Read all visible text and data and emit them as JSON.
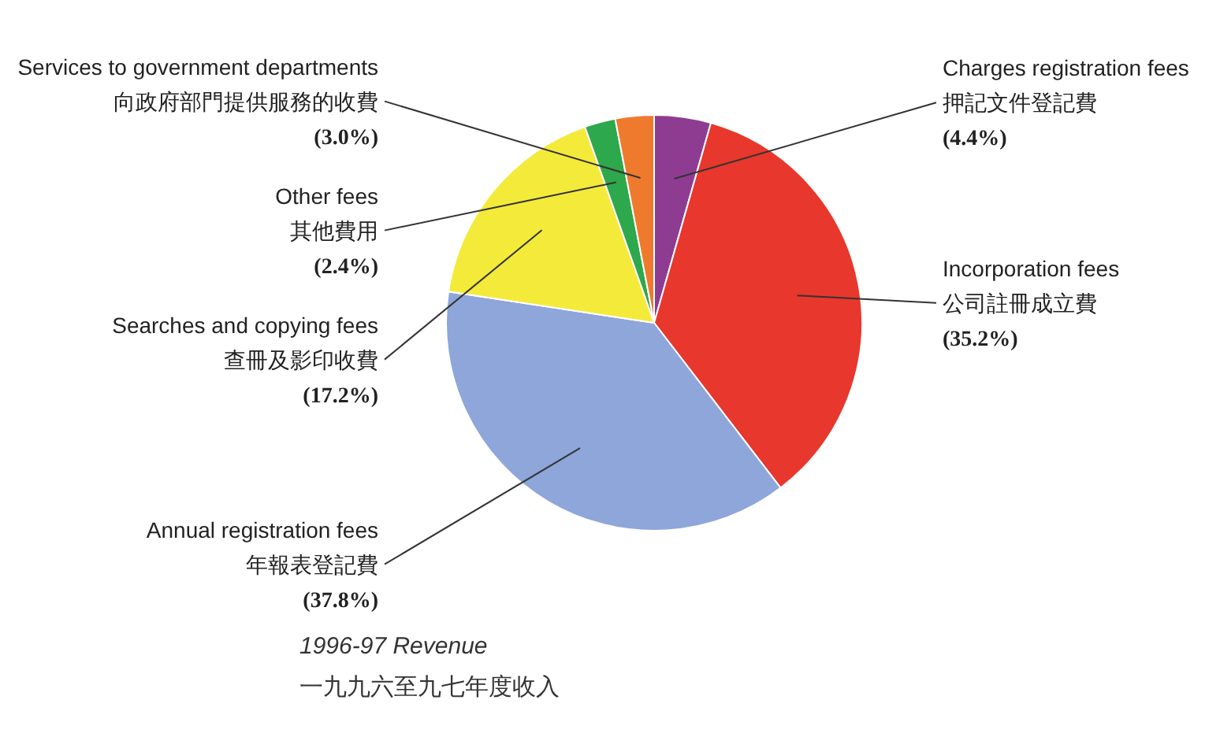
{
  "chart_data": {
    "type": "pie",
    "title": "1996-97 Revenue",
    "subtitle": "一九九六至九七年度收入",
    "categories": [
      "Charges registration fees\n押記文件登記費",
      "Incorporation fees\n公司註冊成立費",
      "Annual registration fees\n年報表登記費",
      "Searches and copying fees\n查冊及影印收費",
      "Other fees\n其他費用",
      "Services to government departments\n向政府部門提供服務的收費"
    ],
    "values": [
      4.4,
      35.2,
      37.8,
      17.2,
      2.4,
      3.0
    ],
    "value_labels": [
      "(4.4%)",
      "(35.2%)",
      "(37.8%)",
      "(17.2%)",
      "(2.4%)",
      "(3.0%)"
    ],
    "colors": [
      "#8e3c92",
      "#e8372c",
      "#8ea6da",
      "#f4ea3a",
      "#2ea84c",
      "#ef7a2e"
    ]
  }
}
